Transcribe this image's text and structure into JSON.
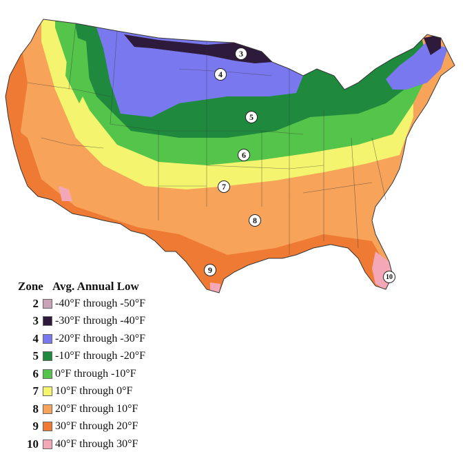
{
  "legend": {
    "zone_header": "Zone",
    "low_header": "Avg. Annual Low",
    "rows": [
      {
        "zone": "2",
        "range": "-40°F through -50°F",
        "color": "#c8a3b8"
      },
      {
        "zone": "3",
        "range": "-30°F through -40°F",
        "color": "#2e1a3a"
      },
      {
        "zone": "4",
        "range": "-20°F through -30°F",
        "color": "#7a78ef"
      },
      {
        "zone": "5",
        "range": "-10°F through -20°F",
        "color": "#1f8a3e"
      },
      {
        "zone": "6",
        "range": "0°F through -10°F",
        "color": "#55c44a"
      },
      {
        "zone": "7",
        "range": "10°F through 0°F",
        "color": "#f4f46e"
      },
      {
        "zone": "8",
        "range": "20°F through 10°F",
        "color": "#f7a35a"
      },
      {
        "zone": "9",
        "range": "30°F through 20°F",
        "color": "#ef7a34"
      },
      {
        "zone": "10",
        "range": "40°F through 30°F",
        "color": "#f4a7b6"
      }
    ]
  },
  "map_labels": [
    {
      "label": "3"
    },
    {
      "label": "4"
    },
    {
      "label": "5"
    },
    {
      "label": "6"
    },
    {
      "label": "7"
    },
    {
      "label": "8"
    },
    {
      "label": "9"
    },
    {
      "label": "10"
    }
  ]
}
